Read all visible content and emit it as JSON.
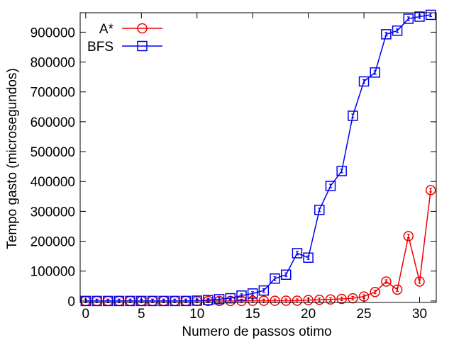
{
  "chart_data": {
    "type": "line",
    "title": "",
    "xlabel": "Numero de passos otimo",
    "ylabel": "Tempo gasto (microsegundos)",
    "xlim": [
      -0.5,
      31.5
    ],
    "ylim": [
      -5000,
      965000
    ],
    "xticks": [
      0,
      5,
      10,
      15,
      20,
      25,
      30
    ],
    "yticks": [
      0,
      100000,
      200000,
      300000,
      400000,
      500000,
      600000,
      700000,
      800000,
      900000
    ],
    "grid": false,
    "legend_position": "top-left",
    "series": [
      {
        "name": "A*",
        "color": "#ee0000",
        "marker": "circle",
        "x": [
          0,
          1,
          2,
          3,
          4,
          5,
          6,
          7,
          8,
          9,
          10,
          11,
          12,
          13,
          14,
          15,
          16,
          17,
          18,
          19,
          20,
          21,
          22,
          23,
          24,
          25,
          26,
          27,
          28,
          29,
          30,
          31
        ],
        "y": [
          0,
          0,
          0,
          0,
          0,
          0,
          0,
          0,
          0,
          0,
          0,
          0,
          0,
          0,
          0,
          500,
          500,
          500,
          1000,
          1000,
          3000,
          4000,
          5000,
          7000,
          9000,
          15000,
          30000,
          65000,
          38000,
          217000,
          65000,
          371000
        ]
      },
      {
        "name": "BFS",
        "color": "#0000ee",
        "marker": "square",
        "x": [
          0,
          1,
          2,
          3,
          4,
          5,
          6,
          7,
          8,
          9,
          10,
          11,
          12,
          13,
          14,
          15,
          16,
          17,
          18,
          19,
          20,
          21,
          22,
          23,
          24,
          25,
          26,
          27,
          28,
          29,
          30,
          31
        ],
        "y": [
          0,
          0,
          0,
          0,
          0,
          0,
          0,
          0,
          0,
          0,
          1000,
          3000,
          6000,
          9000,
          18000,
          25000,
          35000,
          75000,
          88000,
          160000,
          145000,
          305000,
          385000,
          435000,
          620000,
          735000,
          765000,
          893000,
          905000,
          945000,
          952000,
          958000
        ]
      }
    ]
  }
}
